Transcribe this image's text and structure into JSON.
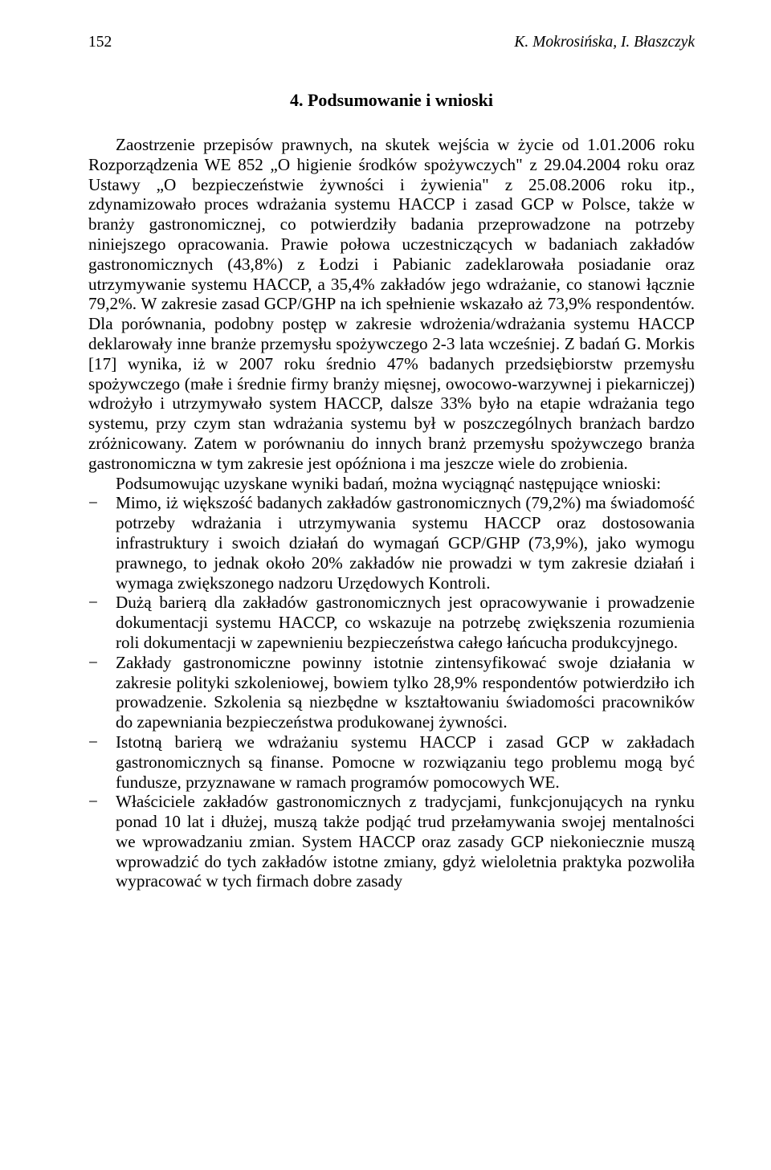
{
  "header": {
    "page_number": "152",
    "authors": "K. Mokrosińska, I. Błaszczyk"
  },
  "section": {
    "title": "4. Podsumowanie i wnioski"
  },
  "paragraphs": {
    "p1": "Zaostrzenie przepisów prawnych, na skutek wejścia w życie od 1.01.2006 roku Rozporządzenia WE 852 „O higienie środków spożywczych\" z 29.04.2004 roku oraz Ustawy „O bezpieczeństwie żywności i żywienia\" z 25.08.2006 roku itp., zdynamizowało proces wdrażania systemu HACCP i zasad GCP w Polsce, także w branży gastronomicznej, co potwierdziły badania przeprowadzone na potrzeby niniejszego opracowania. Prawie połowa uczestniczących w badaniach zakładów gastronomicznych (43,8%) z Łodzi i Pabianic zadeklarowała posiadanie oraz utrzymywanie systemu HACCP, a 35,4% zakładów jego wdrażanie, co stanowi łącznie 79,2%. W zakresie zasad GCP/GHP na ich spełnienie wskazało aż 73,9% respondentów. Dla porównania, podobny postęp w zakresie wdrożenia/wdrażania systemu HACCP deklarowały inne branże przemysłu spożywczego 2-3 lata wcześniej. Z badań G. Morkis [17] wynika, iż w 2007 roku średnio 47% badanych przedsiębiorstw przemysłu spożywczego (małe i średnie firmy branży mięsnej, owocowo-warzywnej i piekarniczej) wdrożyło i utrzymywało system HACCP, dalsze 33% było na etapie wdrażania tego systemu, przy czym stan wdrażania systemu był w poszczególnych branżach bardzo zróżnicowany. Zatem w porównaniu do innych branż przemysłu spożywczego branża gastronomiczna w tym zakresie jest opóźniona i ma jeszcze wiele do zrobienia.",
    "p2": "Podsumowując uzyskane wyniki badań, można wyciągnąć następujące wnioski:"
  },
  "bullets": {
    "b1": "Mimo, iż większość badanych zakładów gastronomicznych (79,2%) ma świadomość potrzeby wdrażania i utrzymywania systemu HACCP oraz dostosowania infrastruktury i swoich działań do wymagań GCP/GHP (73,9%), jako wymogu prawnego, to jednak około 20% zakładów nie prowadzi w tym zakresie działań i wymaga zwiększonego nadzoru Urzędowych Kontroli.",
    "b2": "Dużą barierą dla zakładów gastronomicznych jest opracowywanie i prowadzenie dokumentacji systemu HACCP, co wskazuje na potrzebę zwiększenia rozumienia roli dokumentacji w zapewnieniu bezpieczeństwa całego łańcucha produkcyjnego.",
    "b3": "Zakłady gastronomiczne powinny istotnie zintensyfikować swoje działania w zakresie polityki szkoleniowej, bowiem tylko 28,9% respondentów potwierdziło ich prowadzenie. Szkolenia są niezbędne w kształtowaniu świadomości pracowników do zapewniania bezpieczeństwa produkowanej żywności.",
    "b4": "Istotną barierą we wdrażaniu systemu HACCP i zasad GCP w zakładach gastronomicznych są finanse. Pomocne w rozwiązaniu tego problemu mogą być fundusze, przyznawane w ramach programów pomocowych WE.",
    "b5": "Właściciele zakładów gastronomicznych z tradycjami, funkcjonujących na rynku ponad 10 lat i dłużej, muszą także podjąć trud przełamywania swojej mentalności we wprowadzaniu zmian. System HACCP oraz zasady GCP niekoniecznie muszą wprowadzić do tych zakładów istotne zmiany, gdyż wieloletnia praktyka pozwoliła wypracować w tych firmach dobre zasady"
  }
}
